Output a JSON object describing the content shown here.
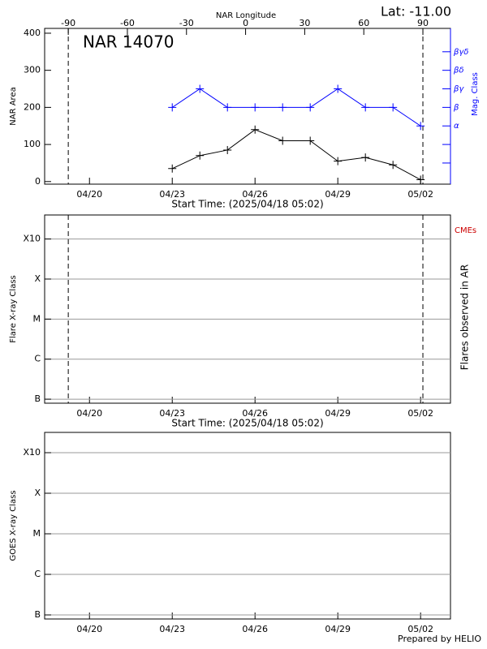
{
  "chart_data": [
    {
      "type": "line",
      "title": "NAR 14070",
      "subtitle": "Lat: -11.00",
      "x2label": "NAR Longitude",
      "x2lim": [
        -102,
        104
      ],
      "x2ticks": [
        -90,
        -60,
        -30,
        0,
        30,
        60,
        90
      ],
      "limb_longitudes": [
        -90,
        90
      ],
      "xlabel": "Start Time: (2025/04/18 05:02)",
      "xlim": [
        "04/18 09:00",
        "05/03 02:00"
      ],
      "xticks": [
        "04/20",
        "04/23",
        "04/26",
        "04/29",
        "05/02"
      ],
      "ylabel": "NAR Area",
      "ylim": [
        -7,
        413
      ],
      "yticks": [
        0,
        100,
        200,
        300,
        400
      ],
      "y2label": "Mag. Class",
      "y2color": "#0000ff",
      "y2ticks": [
        {
          "value": 150,
          "label": "α"
        },
        {
          "value": 200,
          "label": "β"
        },
        {
          "value": 250,
          "label": "βγ"
        },
        {
          "value": 300,
          "label": "βδ"
        },
        {
          "value": 350,
          "label": "βγδ"
        }
      ],
      "y2minor": [
        50,
        100
      ],
      "x": [
        "04/23",
        "04/24",
        "04/25",
        "04/26",
        "04/27",
        "04/28",
        "04/29",
        "04/30",
        "05/01",
        "05/02"
      ],
      "series": [
        {
          "color": "#000000",
          "values": [
            35,
            70,
            85,
            140,
            110,
            110,
            55,
            65,
            45,
            5
          ]
        },
        {
          "color": "#0000ff",
          "axis": "y2",
          "values": [
            200,
            250,
            200,
            200,
            200,
            200,
            250,
            200,
            200,
            150
          ]
        }
      ]
    },
    {
      "type": "flare",
      "xlabel": "Start Time: (2025/04/18 05:02)",
      "xlim": [
        "04/18 09:00",
        "05/03 02:00"
      ],
      "xticks": [
        "04/20",
        "04/23",
        "04/26",
        "04/29",
        "05/02"
      ],
      "limb_longitudes_from_panel": 0,
      "ylabel": "Flare X-ray Class",
      "ylim": [
        -7.1,
        -2.4
      ],
      "yticks": [
        {
          "value": -7,
          "label": "B"
        },
        {
          "value": -6,
          "label": "C"
        },
        {
          "value": -5,
          "label": "M"
        },
        {
          "value": -4,
          "label": "X"
        },
        {
          "value": -3,
          "label": "X10"
        }
      ],
      "y2label": "Flares observed in AR",
      "annotation": "CMEs",
      "annotation_color": "#cc0000",
      "grid": true
    },
    {
      "type": "goes",
      "xlim": [
        "04/18 09:00",
        "05/03 02:00"
      ],
      "xticks": [
        "04/20",
        "04/23",
        "04/26",
        "04/29",
        "05/02"
      ],
      "ylabel": "GOES X-ray Class",
      "ylim": [
        -7.1,
        -2.5
      ],
      "yticks": [
        {
          "value": -7,
          "label": "B"
        },
        {
          "value": -6,
          "label": "C"
        },
        {
          "value": -5,
          "label": "M"
        },
        {
          "value": -4,
          "label": "X"
        },
        {
          "value": -3,
          "label": "X10"
        }
      ],
      "grid": true
    }
  ],
  "footer": "Prepared by HELIO"
}
